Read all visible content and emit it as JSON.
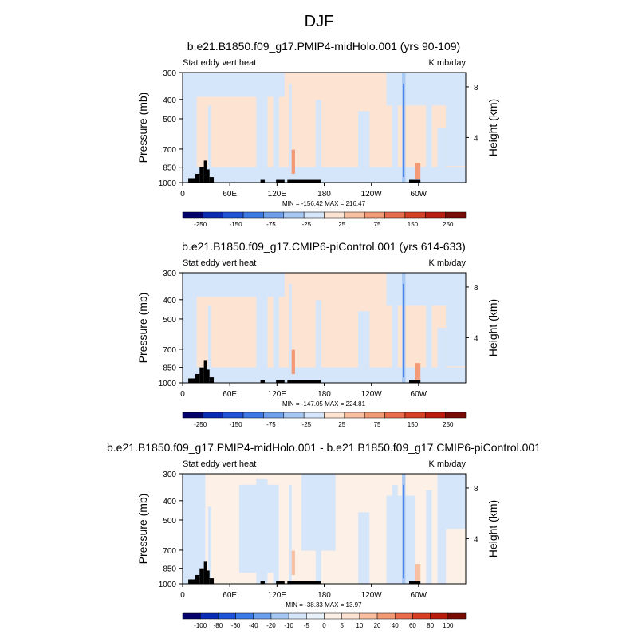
{
  "figure_title": "DJF",
  "chart_data": [
    {
      "type": "heatmap",
      "title": "b.e21.B1850.f09_g17.PMIP4-midHolo.001 (yrs 90-109)",
      "left_label": "Stat eddy vert heat",
      "right_label": "K mb/day",
      "ylabel": "Pressure (mb)",
      "ylabel_right": "Height (km)",
      "y_ticks": [
        "300",
        "400",
        "500",
        "700",
        "850",
        "1000"
      ],
      "y_right_ticks": [
        "8",
        "4"
      ],
      "x_ticks": [
        "0",
        "60E",
        "120E",
        "180",
        "120W",
        "60W"
      ],
      "stats": "MIN = -156.42  MAX = 216.47",
      "colorbar_labels": [
        "-250",
        "-150",
        "-75",
        "-25",
        "25",
        "75",
        "150",
        "250"
      ],
      "colorbar_colors": [
        "#03036b",
        "#0a2bb4",
        "#1f53d8",
        "#3c7ae8",
        "#6fa0ee",
        "#a7c7f3",
        "#d5e6fa",
        "#fde4d2",
        "#f8bfa0",
        "#f29a76",
        "#e96c4d",
        "#d84026",
        "#ba1d10",
        "#7a0a06"
      ]
    },
    {
      "type": "heatmap",
      "title": "b.e21.B1850.f09_g17.CMIP6-piControl.001 (yrs 614-633)",
      "left_label": "Stat eddy vert heat",
      "right_label": "K mb/day",
      "ylabel": "Pressure (mb)",
      "ylabel_right": "Height (km)",
      "y_ticks": [
        "300",
        "400",
        "500",
        "700",
        "850",
        "1000"
      ],
      "y_right_ticks": [
        "8",
        "4"
      ],
      "x_ticks": [
        "0",
        "60E",
        "120E",
        "180",
        "120W",
        "60W"
      ],
      "stats": "MIN = -147.05  MAX = 224.81",
      "colorbar_labels": [
        "-250",
        "-150",
        "-75",
        "-25",
        "25",
        "75",
        "150",
        "250"
      ],
      "colorbar_colors": [
        "#03036b",
        "#0a2bb4",
        "#1f53d8",
        "#3c7ae8",
        "#6fa0ee",
        "#a7c7f3",
        "#d5e6fa",
        "#fde4d2",
        "#f8bfa0",
        "#f29a76",
        "#e96c4d",
        "#d84026",
        "#ba1d10",
        "#7a0a06"
      ]
    },
    {
      "type": "heatmap",
      "title": "b.e21.B1850.f09_g17.PMIP4-midHolo.001 - b.e21.B1850.f09_g17.CMIP6-piControl.001",
      "left_label": "Stat eddy vert heat",
      "right_label": "K mb/day",
      "ylabel": "Pressure (mb)",
      "ylabel_right": "Height (km)",
      "y_ticks": [
        "300",
        "400",
        "500",
        "700",
        "850",
        "1000"
      ],
      "y_right_ticks": [
        "8",
        "4"
      ],
      "x_ticks": [
        "0",
        "60E",
        "120E",
        "180",
        "120W",
        "60W"
      ],
      "stats": "MIN = -38.33  MAX = 13.97",
      "colorbar_labels": [
        "-100",
        "-80",
        "-60",
        "-40",
        "-20",
        "-10",
        "-5",
        "0",
        "5",
        "10",
        "20",
        "40",
        "60",
        "80",
        "100"
      ],
      "colorbar_colors": [
        "#03036b",
        "#0a2bb4",
        "#1f53d8",
        "#3c7ae8",
        "#6fa0ee",
        "#a7c7f3",
        "#d5e6fa",
        "#e9f1fb",
        "#fdf0e6",
        "#fde4d2",
        "#f8bfa0",
        "#f29a76",
        "#e96c4d",
        "#d84026",
        "#ba1d10",
        "#7a0a06"
      ]
    }
  ]
}
